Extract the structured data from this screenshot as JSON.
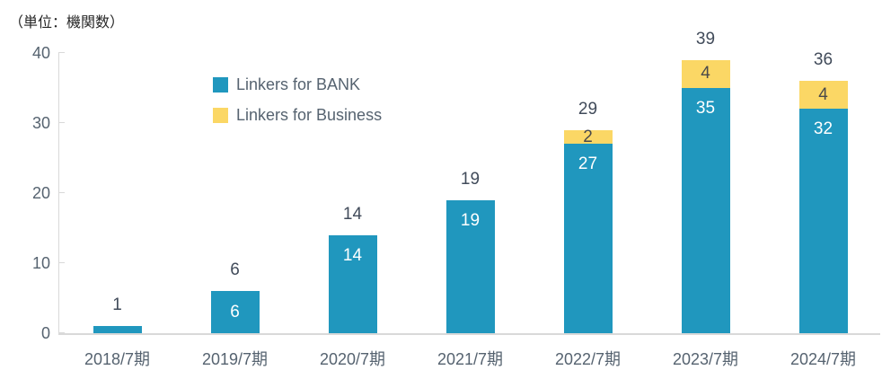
{
  "chart_data": {
    "type": "bar",
    "stacked": true,
    "unit_label": "（単位：機関数）",
    "categories": [
      "2018/7期",
      "2019/7期",
      "2020/7期",
      "2021/7期",
      "2022/7期",
      "2023/7期",
      "2024/7期"
    ],
    "series": [
      {
        "name": "Linkers for BANK",
        "color": "#2097BE",
        "label_color": "#ffffff",
        "values": [
          1,
          6,
          14,
          19,
          27,
          35,
          32
        ]
      },
      {
        "name": "Linkers for Business",
        "color": "#FBD765",
        "label_color": "#4a4a4a",
        "values": [
          0,
          0,
          0,
          0,
          2,
          4,
          4
        ]
      }
    ],
    "totals": [
      1,
      6,
      14,
      19,
      29,
      39,
      36
    ],
    "ylim": [
      0,
      40
    ],
    "yticks": [
      0,
      10,
      20,
      30,
      40
    ],
    "grid": "off",
    "legend_position": "inside-top-left",
    "axis_color": "#D9D9D9",
    "axis_text_color": "#566370",
    "total_label_color": "#414B5A"
  }
}
